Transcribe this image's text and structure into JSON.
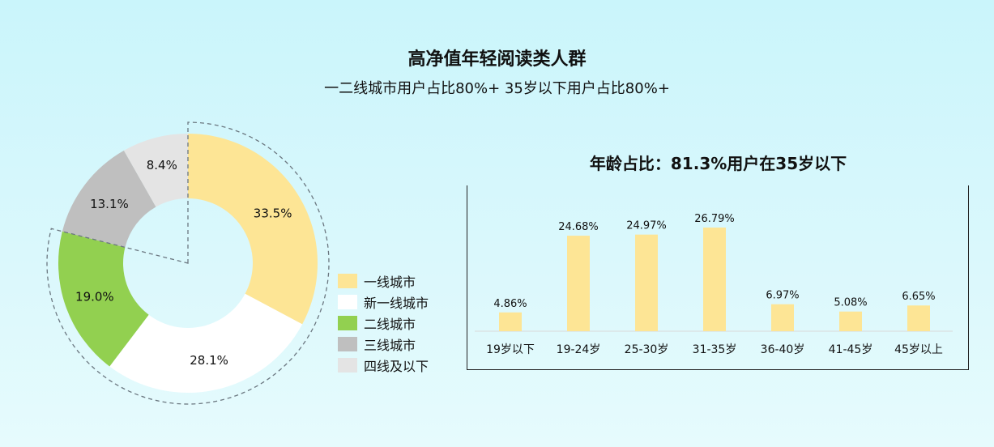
{
  "header": {
    "title": "高净值年轻阅读类人群",
    "subtitle": "一二线城市用户占比80%+  35岁以下用户占比80%+"
  },
  "colors": {
    "tier1": "#fde595",
    "new_tier1": "#ffffff",
    "tier2": "#92d050",
    "tier3": "#bfbfbf",
    "tier4": "#e4e4e4",
    "bar": "#fde595",
    "dash": "#6b7780"
  },
  "chart_data": [
    {
      "type": "pie",
      "variant": "donut",
      "title": "",
      "categories": [
        "一线城市",
        "新一线城市",
        "二线城市",
        "三线城市",
        "四线及以下"
      ],
      "values": [
        33.5,
        28.1,
        19.0,
        13.1,
        8.4
      ],
      "labels": [
        "33.5%",
        "28.1%",
        "19.0%",
        "13.1%",
        "8.4%"
      ],
      "legend": "right",
      "annotation": "dashed outline around 一二线城市 segments"
    },
    {
      "type": "bar",
      "title": "年龄占比：81.3%用户在35岁以下",
      "categories": [
        "19岁以下",
        "19-24岁",
        "25-30岁",
        "31-35岁",
        "36-40岁",
        "41-45岁",
        "45岁以上"
      ],
      "values": [
        4.86,
        24.68,
        24.97,
        26.79,
        6.97,
        5.08,
        6.65
      ],
      "labels": [
        "4.86%",
        "24.68%",
        "24.97%",
        "26.79%",
        "6.97%",
        "5.08%",
        "6.65%"
      ],
      "xlabel": "",
      "ylabel": "",
      "ylim": [
        0,
        30
      ],
      "grid": false
    }
  ]
}
